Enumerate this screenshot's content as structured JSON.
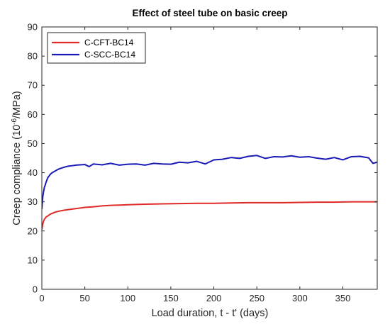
{
  "chart_data": {
    "type": "line",
    "title": "Effect of steel tube on basic creep",
    "xlabel": "Load duration, t - t' (days)",
    "ylabel_parts": {
      "prefix": "Creep compliance (10",
      "superscript": "-6",
      "suffix": "/MPa)"
    },
    "xlim": [
      0,
      390
    ],
    "ylim": [
      0,
      90
    ],
    "x_ticks": [
      0,
      50,
      100,
      150,
      200,
      250,
      300,
      350
    ],
    "y_ticks": [
      0,
      10,
      20,
      30,
      40,
      50,
      60,
      70,
      80,
      90
    ],
    "grid": false,
    "box": true,
    "legend_position": "top-left",
    "series": [
      {
        "name": "C-CFT-BC14",
        "color": "#e02a2a",
        "x": [
          0,
          1,
          2,
          3,
          5,
          7,
          10,
          15,
          20,
          25,
          30,
          40,
          50,
          60,
          70,
          80,
          90,
          100,
          120,
          140,
          160,
          180,
          200,
          220,
          240,
          260,
          280,
          300,
          320,
          340,
          360,
          390
        ],
        "y": [
          20.5,
          22.3,
          23.3,
          24.0,
          24.8,
          25.2,
          25.8,
          26.4,
          26.8,
          27.1,
          27.3,
          27.7,
          28.1,
          28.3,
          28.6,
          28.8,
          28.9,
          29.0,
          29.2,
          29.3,
          29.4,
          29.5,
          29.5,
          29.6,
          29.7,
          29.7,
          29.7,
          29.8,
          29.9,
          29.9,
          30.0,
          30.0
        ]
      },
      {
        "name": "C-SCC-BC14",
        "color": "#1a1ab8",
        "x": [
          0,
          1,
          2,
          3,
          4,
          5,
          7,
          10,
          12,
          15,
          18,
          20,
          25,
          30,
          35,
          40,
          50,
          55,
          60,
          70,
          80,
          90,
          100,
          110,
          120,
          130,
          140,
          150,
          160,
          170,
          180,
          190,
          200,
          210,
          220,
          230,
          240,
          250,
          260,
          270,
          280,
          290,
          300,
          310,
          320,
          330,
          340,
          350,
          360,
          370,
          380,
          385,
          390
        ],
        "y": [
          27.5,
          31.5,
          33.5,
          35.0,
          35.8,
          36.8,
          38.3,
          39.5,
          40.0,
          40.5,
          41.0,
          41.3,
          41.8,
          42.2,
          42.4,
          42.6,
          42.8,
          42.1,
          43.0,
          42.7,
          43.2,
          42.6,
          42.9,
          43.0,
          42.6,
          43.2,
          43.0,
          42.9,
          43.6,
          43.4,
          43.9,
          43.0,
          44.4,
          44.6,
          45.2,
          44.9,
          45.6,
          45.9,
          44.9,
          45.5,
          45.4,
          45.8,
          45.3,
          45.5,
          45.0,
          44.6,
          45.2,
          44.4,
          45.5,
          45.6,
          45.1,
          43.2,
          43.6
        ]
      }
    ]
  }
}
